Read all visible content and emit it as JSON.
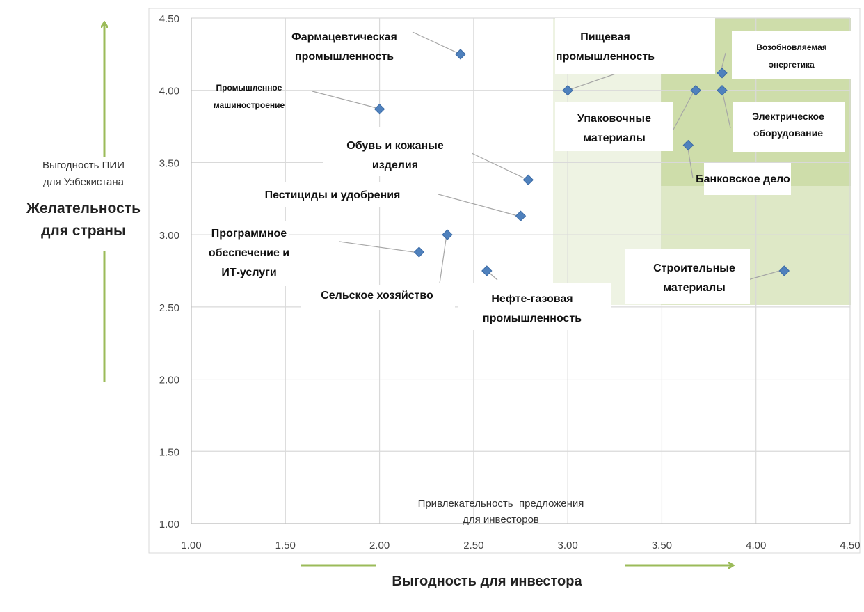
{
  "chart_data": {
    "type": "scatter",
    "xlim": [
      1.0,
      4.5
    ],
    "ylim": [
      1.0,
      4.5
    ],
    "x_ticks": [
      "1.00",
      "1.50",
      "2.00",
      "2.50",
      "3.00",
      "3.50",
      "4.00",
      "4.50"
    ],
    "y_ticks": [
      "1.00",
      "1.50",
      "2.00",
      "2.50",
      "3.00",
      "3.50",
      "4.00",
      "4.50"
    ],
    "grid": true,
    "ylabel_sub": [
      "Выгодность ПИИ",
      "для Узбекистана"
    ],
    "ylabel_main": [
      "Желательность",
      "для страны"
    ],
    "xlabel_sub": [
      "Привлекательность  предложения",
      "для инвесторов"
    ],
    "xlabel_main": "Выгодность для инвестора",
    "marker_color": "#4f81bd",
    "points": [
      {
        "label": [
          "Фармацевтическая",
          "промышленность"
        ],
        "x": 2.43,
        "y": 4.25
      },
      {
        "label": [
          "Промышленное",
          "машиностроение"
        ],
        "x": 2.0,
        "y": 3.87
      },
      {
        "label": [
          "Обувь и кожаные",
          "изделия"
        ],
        "x": 2.79,
        "y": 3.38
      },
      {
        "label": [
          "Пестициды и удобрения"
        ],
        "x": 2.75,
        "y": 3.13
      },
      {
        "label": [
          "Программное",
          "обеспечение и",
          "ИТ-услуги"
        ],
        "x": 2.21,
        "y": 2.88
      },
      {
        "label": [
          "Сельское хозяйство"
        ],
        "x": 2.36,
        "y": 3.0
      },
      {
        "label": [
          "Нефте-газовая",
          "промышленность"
        ],
        "x": 2.57,
        "y": 2.75
      },
      {
        "label": [
          "Пищевая",
          "промышленность"
        ],
        "x": 3.0,
        "y": 4.0
      },
      {
        "label": [
          "Возобновляемая",
          "энергетика"
        ],
        "x": 3.82,
        "y": 4.12
      },
      {
        "label": [
          "Упаковочные",
          "материалы"
        ],
        "x": 3.68,
        "y": 4.0
      },
      {
        "label": [
          "Электрическое",
          "оборудование"
        ],
        "x": 3.82,
        "y": 4.0
      },
      {
        "label": [
          "Банковское дело"
        ],
        "x": 3.64,
        "y": 3.62
      },
      {
        "label": [
          "Строительные",
          "материалы"
        ],
        "x": 4.15,
        "y": 2.75
      }
    ]
  }
}
